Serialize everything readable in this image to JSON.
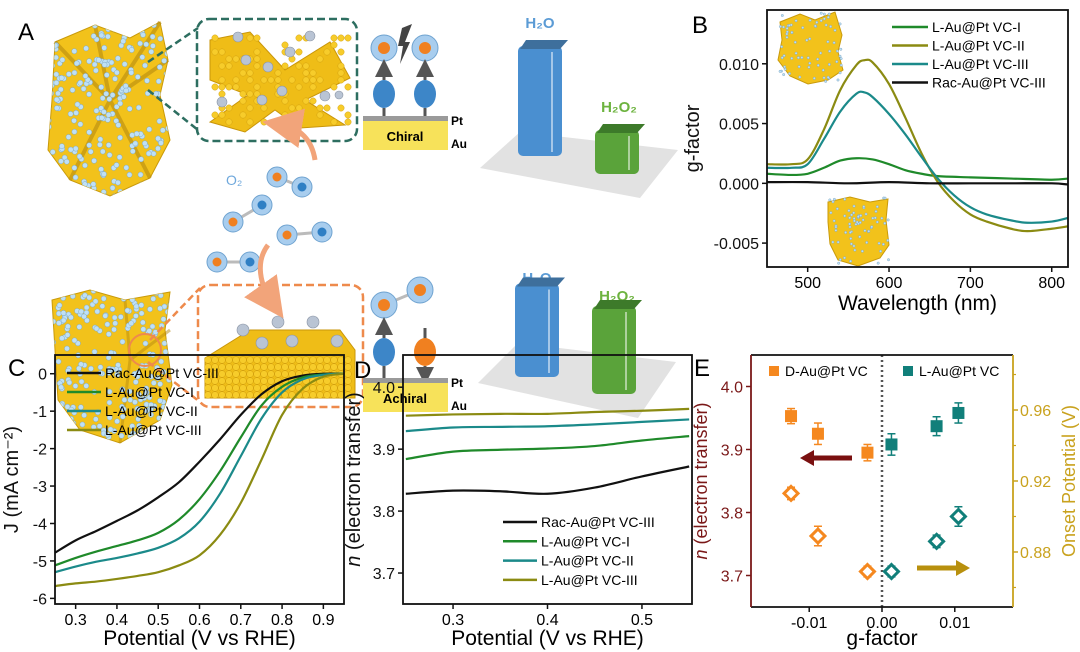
{
  "panel_a": {
    "label": "A",
    "chiral_label": "Chiral",
    "achiral_label": "Achiral",
    "pt_label": "Pt",
    "au_label": "Au",
    "o2_label": "O₂",
    "top_bars": {
      "h2o_label": "H₂O",
      "h2o2_label": "H₂O₂",
      "relative_h2o": 1.0,
      "relative_h2o2": 0.4
    },
    "bottom_bars": {
      "h2o_label": "H₂O",
      "h2o2_label": "H₂O₂",
      "relative_h2o": 0.85,
      "relative_h2o2": 0.8
    },
    "colors": {
      "gold": "#f2c21b",
      "h2o": "#4a8fd0",
      "h2o2": "#5aa33a",
      "chiral_box": "#2d6e60",
      "achiral_box": "#ee8a4c"
    }
  },
  "chart_data": [
    {
      "id": "B",
      "panel_label": "B",
      "type": "line",
      "xlabel": "Wavelength (nm)",
      "ylabel": "g-factor",
      "xlim": [
        450,
        820
      ],
      "ylim": [
        -0.007,
        0.0145
      ],
      "xticks": [
        500,
        600,
        700,
        800
      ],
      "xtick_labels": [
        "500",
        "600",
        "700",
        "800"
      ],
      "yticks": [
        -0.005,
        0,
        0.005,
        0.01
      ],
      "ytick_labels": [
        "-0.005",
        "0.000",
        "0.005",
        "0.010"
      ],
      "legend": "top-right",
      "series": [
        {
          "name": "L-Au@Pt VC-I",
          "color": "#1f8a2a",
          "x": [
            450,
            480,
            500,
            520,
            540,
            560,
            580,
            600,
            620,
            640,
            660,
            700,
            750,
            800,
            820
          ],
          "y": [
            0.0008,
            0.0007,
            0.0008,
            0.0013,
            0.0019,
            0.0021,
            0.002,
            0.0016,
            0.0011,
            0.0008,
            0.0006,
            0.0005,
            0.0004,
            0.0003,
            0.0004
          ]
        },
        {
          "name": "L-Au@Pt VC-II",
          "color": "#8b8b12",
          "x": [
            450,
            480,
            500,
            520,
            540,
            560,
            570,
            580,
            600,
            620,
            640,
            660,
            680,
            700,
            720,
            750,
            770,
            800,
            820
          ],
          "y": [
            0.0016,
            0.0016,
            0.002,
            0.0045,
            0.0078,
            0.0099,
            0.0103,
            0.0101,
            0.0083,
            0.0055,
            0.0025,
            0.0001,
            -0.0015,
            -0.0026,
            -0.0032,
            -0.0038,
            -0.004,
            -0.0038,
            -0.0036
          ]
        },
        {
          "name": "L-Au@Pt VC-III",
          "color": "#1b8a8a",
          "x": [
            450,
            480,
            500,
            520,
            540,
            560,
            570,
            580,
            600,
            620,
            640,
            660,
            680,
            700,
            720,
            750,
            770,
            800,
            820
          ],
          "y": [
            0.0013,
            0.0013,
            0.0016,
            0.0037,
            0.006,
            0.0075,
            0.0076,
            0.0072,
            0.0058,
            0.0041,
            0.0022,
            0.0004,
            -0.001,
            -0.002,
            -0.0026,
            -0.0031,
            -0.0033,
            -0.0032,
            -0.0029
          ]
        },
        {
          "name": "Rac-Au@Pt VC-III",
          "color": "#111111",
          "x": [
            450,
            500,
            550,
            600,
            650,
            700,
            750,
            800,
            820
          ],
          "y": [
            0.0001,
            0.0001,
            0.0,
            0.0001,
            0.0,
            0.0,
            0.0,
            0.0,
            -0.0001
          ]
        }
      ]
    },
    {
      "id": "C",
      "panel_label": "C",
      "type": "line",
      "xlabel": "Potential (V vs RHE)",
      "ylabel": "J (mA cm⁻²)",
      "xlim": [
        0.25,
        0.95
      ],
      "ylim": [
        -6.15,
        0.5
      ],
      "xticks": [
        0.3,
        0.4,
        0.5,
        0.6,
        0.7,
        0.8,
        0.9
      ],
      "xtick_labels": [
        "0.3",
        "0.4",
        "0.5",
        "0.6",
        "0.7",
        "0.8",
        "0.9"
      ],
      "yticks": [
        0,
        -1,
        -2,
        -3,
        -4,
        -5,
        -6
      ],
      "ytick_labels": [
        "0",
        "-1",
        "-2",
        "-3",
        "-4",
        "-5",
        "-6"
      ],
      "legend": "top-left",
      "series": [
        {
          "name": "Rac-Au@Pt VC-III",
          "color": "#111111",
          "x": [
            0.25,
            0.3,
            0.35,
            0.4,
            0.45,
            0.5,
            0.55,
            0.6,
            0.65,
            0.7,
            0.75,
            0.8,
            0.85,
            0.9,
            0.95
          ],
          "y": [
            -4.78,
            -4.45,
            -4.2,
            -3.93,
            -3.65,
            -3.3,
            -2.9,
            -2.35,
            -1.75,
            -1.1,
            -0.55,
            -0.2,
            -0.05,
            0,
            0
          ]
        },
        {
          "name": "L-Au@Pt VC-I",
          "color": "#1f8a2a",
          "x": [
            0.25,
            0.3,
            0.35,
            0.4,
            0.45,
            0.5,
            0.55,
            0.6,
            0.65,
            0.7,
            0.75,
            0.8,
            0.85,
            0.9,
            0.95
          ],
          "y": [
            -5.12,
            -4.92,
            -4.75,
            -4.6,
            -4.45,
            -4.25,
            -3.9,
            -3.35,
            -2.6,
            -1.7,
            -0.85,
            -0.35,
            -0.1,
            -0.02,
            0
          ]
        },
        {
          "name": "L-Au@Pt VC-II",
          "color": "#1b8a8a",
          "x": [
            0.25,
            0.3,
            0.35,
            0.4,
            0.45,
            0.5,
            0.55,
            0.6,
            0.65,
            0.7,
            0.75,
            0.8,
            0.85,
            0.9,
            0.95
          ],
          "y": [
            -5.3,
            -5.15,
            -5.02,
            -4.92,
            -4.8,
            -4.65,
            -4.4,
            -3.95,
            -3.2,
            -2.2,
            -1.2,
            -0.5,
            -0.15,
            -0.03,
            0
          ]
        },
        {
          "name": "L-Au@Pt VC-III",
          "color": "#8b8b12",
          "x": [
            0.25,
            0.3,
            0.35,
            0.4,
            0.45,
            0.5,
            0.55,
            0.6,
            0.65,
            0.7,
            0.75,
            0.8,
            0.85,
            0.9,
            0.95
          ],
          "y": [
            -5.67,
            -5.6,
            -5.55,
            -5.48,
            -5.4,
            -5.3,
            -5.12,
            -4.85,
            -4.3,
            -3.45,
            -2.3,
            -1.1,
            -0.4,
            -0.08,
            0
          ]
        }
      ]
    },
    {
      "id": "D",
      "panel_label": "D",
      "type": "line",
      "xlabel": "Potential (V vs RHE)",
      "ylabel": "n (electron transfer)",
      "xlim": [
        0.247,
        0.553
      ],
      "ylim": [
        3.65,
        4.052
      ],
      "xticks": [
        0.3,
        0.4,
        0.5
      ],
      "xtick_labels": [
        "0.3",
        "0.4",
        "0.5"
      ],
      "yticks": [
        3.7,
        3.8,
        3.9,
        4.0
      ],
      "ytick_labels": [
        "3.7",
        "3.8",
        "3.9",
        "4.0"
      ],
      "legend": "bottom-right",
      "series": [
        {
          "name": "Rac-Au@Pt VC-III",
          "color": "#111111",
          "x": [
            0.25,
            0.3,
            0.35,
            0.4,
            0.45,
            0.5,
            0.55
          ],
          "y": [
            3.828,
            3.833,
            3.832,
            3.828,
            3.838,
            3.856,
            3.872
          ]
        },
        {
          "name": "L-Au@Pt VC-I",
          "color": "#1f8a2a",
          "x": [
            0.25,
            0.3,
            0.35,
            0.4,
            0.45,
            0.5,
            0.55
          ],
          "y": [
            3.884,
            3.896,
            3.899,
            3.901,
            3.905,
            3.914,
            3.921
          ]
        },
        {
          "name": "L-Au@Pt VC-II",
          "color": "#1b8a8a",
          "x": [
            0.25,
            0.3,
            0.35,
            0.4,
            0.45,
            0.5,
            0.55
          ],
          "y": [
            3.929,
            3.935,
            3.936,
            3.937,
            3.94,
            3.944,
            3.948
          ]
        },
        {
          "name": "L-Au@Pt VC-III",
          "color": "#8b8b12",
          "x": [
            0.25,
            0.3,
            0.35,
            0.4,
            0.45,
            0.5,
            0.55
          ],
          "y": [
            3.954,
            3.956,
            3.957,
            3.957,
            3.96,
            3.962,
            3.965
          ]
        }
      ]
    },
    {
      "id": "E",
      "panel_label": "E",
      "type": "scatter",
      "xlabel": "g-factor",
      "ylabel": "n (electron transfer)",
      "ylabel_right": "Onset Potential (V)",
      "xlim": [
        -0.018,
        0.018
      ],
      "ylim": [
        3.65,
        4.05
      ],
      "ylim_right": [
        0.849,
        0.991
      ],
      "xticks": [
        -0.01,
        0,
        0.01
      ],
      "xtick_labels": [
        "-0.01",
        "0.00",
        "0.01"
      ],
      "yticks": [
        3.7,
        3.8,
        3.9,
        4.0
      ],
      "ytick_labels": [
        "3.7",
        "3.8",
        "3.9",
        "4.0"
      ],
      "yticks_right": [
        0.88,
        0.92,
        0.96
      ],
      "ytick_labels_right": [
        "0.88",
        "0.92",
        "0.96"
      ],
      "yminor_right": [
        0.86,
        0.9,
        0.94,
        0.98
      ],
      "left_axis_color": "#7a1818",
      "right_axis_color": "#c9a21e",
      "legend": [
        {
          "label": "D-Au@Pt VC",
          "color": "#f5881f"
        },
        {
          "label": "L-Au@Pt VC",
          "color": "#117f7a"
        }
      ],
      "series": [
        {
          "name": "D-Au@Pt VC n",
          "axis": "left",
          "marker": "square",
          "color": "#f5881f",
          "x": [
            -0.0125,
            -0.0088,
            -0.002
          ],
          "y": [
            3.953,
            3.925,
            3.895
          ],
          "yerr": [
            0.012,
            0.017,
            0.013
          ]
        },
        {
          "name": "L-Au@Pt VC n",
          "axis": "left",
          "marker": "square",
          "color": "#117f7a",
          "x": [
            0.0013,
            0.0075,
            0.0105
          ],
          "y": [
            3.908,
            3.937,
            3.958
          ],
          "yerr": [
            0.017,
            0.015,
            0.016
          ]
        },
        {
          "name": "D-Au@Pt VC onset",
          "axis": "right",
          "marker": "diamond",
          "color": "#f5881f",
          "x": [
            -0.0125,
            -0.0088,
            -0.002
          ],
          "y": [
            0.913,
            0.889,
            0.869
          ],
          "yerr": [
            0.0035,
            0.0055,
            0.003
          ]
        },
        {
          "name": "L-Au@Pt VC onset",
          "axis": "right",
          "marker": "diamond",
          "color": "#117f7a",
          "x": [
            0.0013,
            0.0075,
            0.0105
          ],
          "y": [
            0.869,
            0.886,
            0.9
          ],
          "yerr": [
            0.003,
            0.0035,
            0.0055
          ]
        }
      ]
    }
  ]
}
